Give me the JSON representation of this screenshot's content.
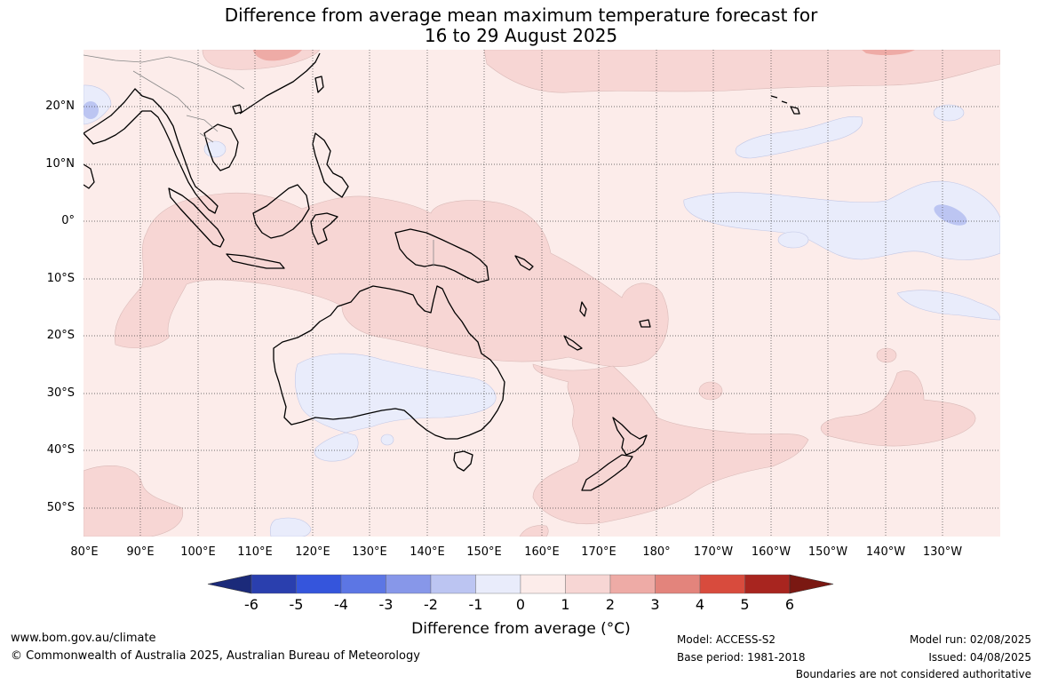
{
  "title": {
    "line1": "Difference from average mean maximum temperature forecast for",
    "line2": "16 to 29 August 2025"
  },
  "map": {
    "lat_labels": [
      "20°N",
      "10°N",
      "0°",
      "10°S",
      "20°S",
      "30°S",
      "40°S",
      "50°S"
    ],
    "lon_labels": [
      "80°E",
      "90°E",
      "100°E",
      "110°E",
      "120°E",
      "130°E",
      "140°E",
      "150°E",
      "160°E",
      "170°E",
      "180°",
      "170°W",
      "160°W",
      "150°W",
      "140°W",
      "130°W"
    ],
    "lat_range": [
      -55,
      30
    ],
    "lon_range_east": [
      80,
      240
    ]
  },
  "colorbar": {
    "ticks": [
      "-6",
      "-5",
      "-4",
      "-3",
      "-2",
      "-1",
      "0",
      "1",
      "2",
      "3",
      "4",
      "5",
      "6"
    ],
    "colors": [
      "#1b2a7a",
      "#2a3fae",
      "#3555dc",
      "#5c76e4",
      "#8797e9",
      "#bcc5f2",
      "#e9ecfb",
      "#fcecea",
      "#f7d6d4",
      "#eeaba6",
      "#e3847c",
      "#d84b3d",
      "#a8251f",
      "#7a1812"
    ],
    "label": "Difference from average (°C)"
  },
  "colors": {
    "background_anomaly": "#fcecea",
    "warm_anomaly": "#f7d6d4",
    "cool_anomaly": "#e9ecfb",
    "moderate_warm": "#eeaba6",
    "moderate_cool": "#bcc5f2"
  },
  "footer": {
    "website": "www.bom.gov.au/climate",
    "copyright": "© Commonwealth of Australia 2025, Australian Bureau of Meteorology",
    "model": "Model: ACCESS-S2",
    "base_period": "Base period: 1981-2018",
    "model_run": "Model run: 02/08/2025",
    "issued": "Issued: 04/08/2025",
    "disclaimer": "Boundaries are not considered authoritative"
  }
}
